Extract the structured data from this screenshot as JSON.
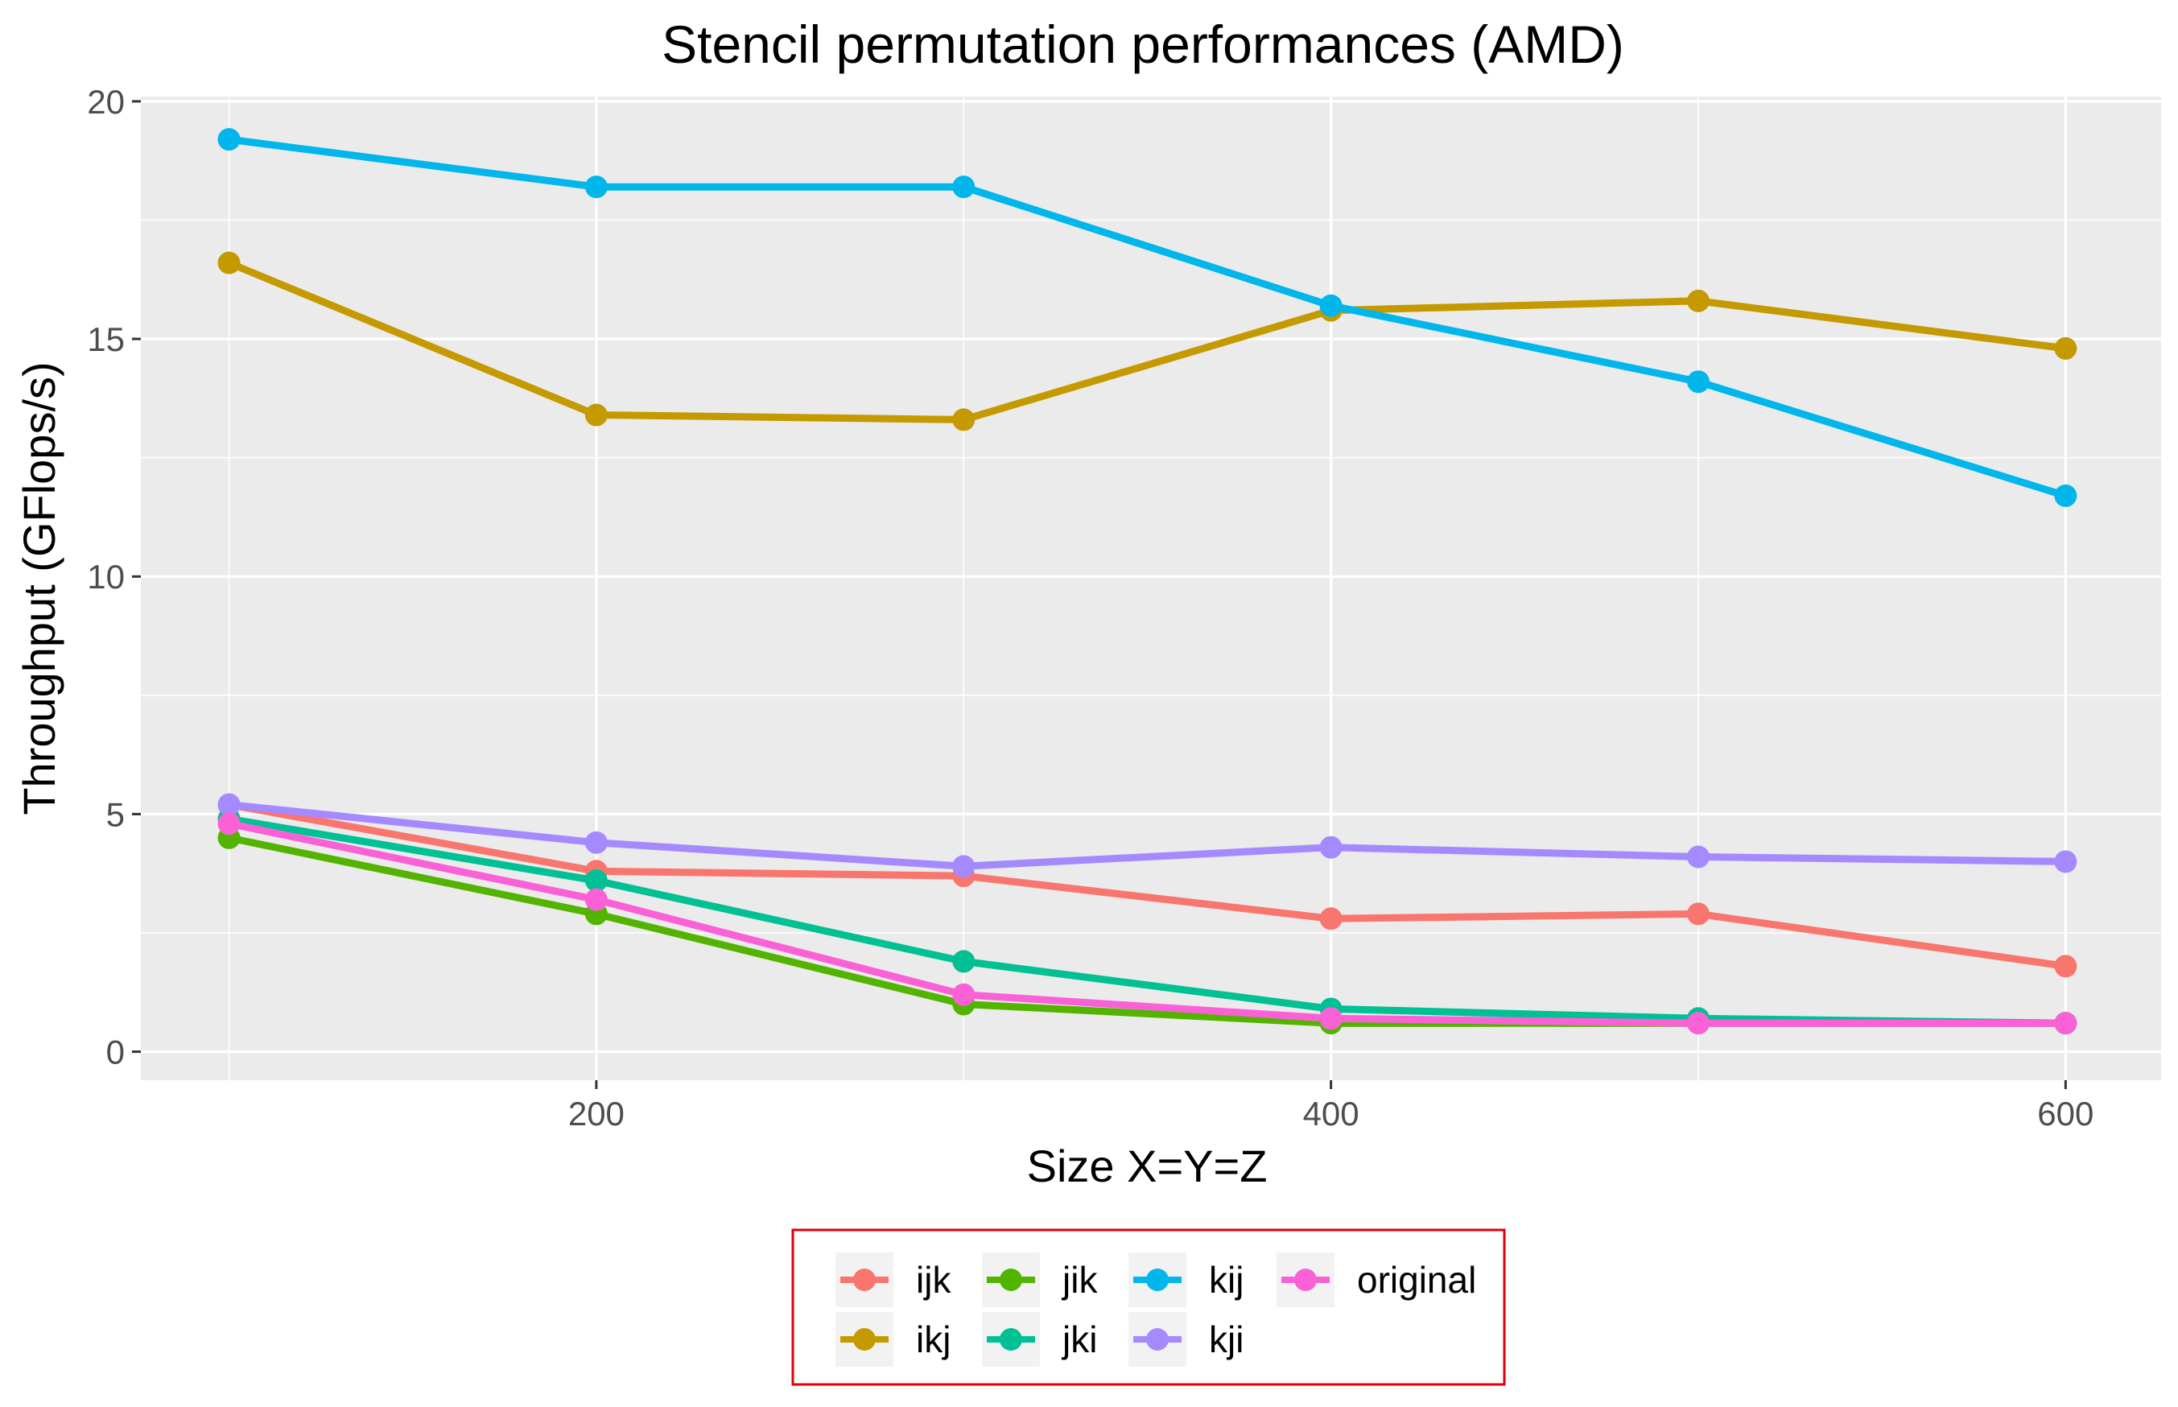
{
  "chart_data": {
    "type": "line",
    "title": "Stencil permutation performances (AMD)",
    "xlabel": "Size X=Y=Z",
    "ylabel": "Throughput (GFlops/s)",
    "x": [
      100,
      200,
      300,
      400,
      500,
      600
    ],
    "xlim": [
      76,
      626
    ],
    "ylim": [
      -0.6,
      20.1
    ],
    "x_ticks": [
      200,
      400,
      600
    ],
    "y_ticks": [
      0,
      5,
      10,
      15,
      20
    ],
    "x_tick_labels": [
      "200",
      "400",
      "600"
    ],
    "y_tick_labels": [
      "0",
      "5",
      "10",
      "15",
      "20"
    ],
    "grid": true,
    "legend_position": "bottom",
    "series": [
      {
        "name": "ijk",
        "color": "#F8766D",
        "values": [
          5.2,
          3.8,
          3.7,
          2.8,
          2.9,
          1.8
        ]
      },
      {
        "name": "ikj",
        "color": "#C49A00",
        "values": [
          16.6,
          13.4,
          13.3,
          15.6,
          15.8,
          14.8
        ]
      },
      {
        "name": "jik",
        "color": "#53B400",
        "values": [
          4.5,
          2.9,
          1.0,
          0.6,
          0.6,
          0.6
        ]
      },
      {
        "name": "jki",
        "color": "#00C094",
        "values": [
          4.9,
          3.6,
          1.9,
          0.9,
          0.7,
          0.6
        ]
      },
      {
        "name": "kij",
        "color": "#00B6EB",
        "values": [
          19.2,
          18.2,
          18.2,
          15.7,
          14.1,
          11.7
        ]
      },
      {
        "name": "kji",
        "color": "#A58AFF",
        "values": [
          5.2,
          4.4,
          3.9,
          4.3,
          4.1,
          4.0
        ]
      },
      {
        "name": "original",
        "color": "#FB61D7",
        "values": [
          4.8,
          3.2,
          1.2,
          0.7,
          0.6,
          0.6
        ]
      }
    ]
  }
}
